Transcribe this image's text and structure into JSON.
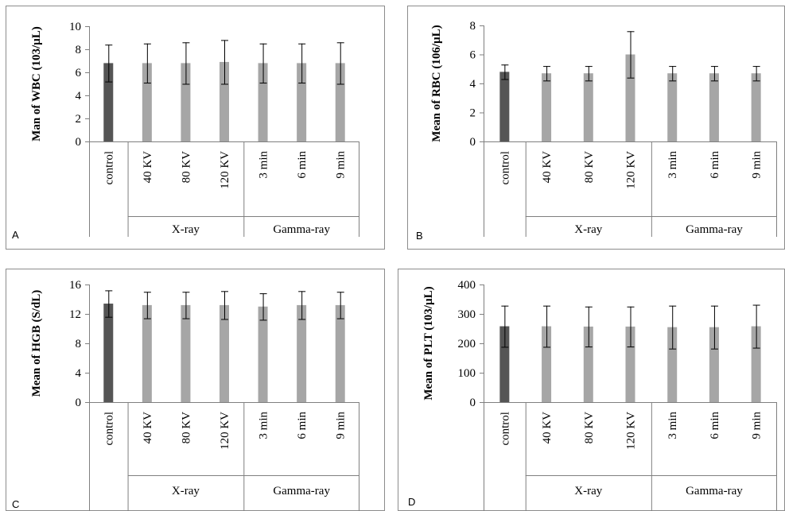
{
  "chart_data": [
    {
      "type": "bar",
      "panel_letter": "A",
      "ylabel": "Man of WBC (103/µL)",
      "ylim": [
        0,
        10
      ],
      "yticks": [
        "0",
        "2",
        "4",
        "6",
        "8",
        "10"
      ],
      "categories": [
        "control",
        "40 KV",
        "80 KV",
        "120 KV",
        "3 min",
        "6 min",
        "9 min"
      ],
      "groups": [
        {
          "label": "",
          "span": [
            0,
            0
          ]
        },
        {
          "label": "X-ray",
          "span": [
            1,
            3
          ]
        },
        {
          "label": "Gamma-ray",
          "span": [
            4,
            6
          ]
        }
      ],
      "values": [
        6.8,
        6.8,
        6.8,
        6.9,
        6.8,
        6.8,
        6.8
      ],
      "errors": [
        1.6,
        1.7,
        1.8,
        1.9,
        1.7,
        1.7,
        1.8
      ]
    },
    {
      "type": "bar",
      "panel_letter": "B",
      "ylabel": "Mean of RBC (106/µL)",
      "ylim": [
        0,
        8
      ],
      "yticks": [
        "0",
        "2",
        "4",
        "6",
        "8"
      ],
      "categories": [
        "control",
        "40 KV",
        "80 KV",
        "120 KV",
        "3 min",
        "6 min",
        "9 min"
      ],
      "groups": [
        {
          "label": "",
          "span": [
            0,
            0
          ]
        },
        {
          "label": "X-ray",
          "span": [
            1,
            3
          ]
        },
        {
          "label": "Gamma-ray",
          "span": [
            4,
            6
          ]
        }
      ],
      "values": [
        4.8,
        4.7,
        4.7,
        6.0,
        4.7,
        4.7,
        4.7
      ],
      "errors": [
        0.5,
        0.5,
        0.5,
        1.6,
        0.5,
        0.5,
        0.5
      ]
    },
    {
      "type": "bar",
      "panel_letter": "C",
      "ylabel": "Mean of HGB (S/dL)",
      "ylim": [
        0,
        16
      ],
      "yticks": [
        "0",
        "4",
        "8",
        "12",
        "16"
      ],
      "categories": [
        "control",
        "40 KV",
        "80 KV",
        "120 KV",
        "3 min",
        "6 min",
        "9 min"
      ],
      "groups": [
        {
          "label": "",
          "span": [
            0,
            0
          ]
        },
        {
          "label": "X-ray",
          "span": [
            1,
            3
          ]
        },
        {
          "label": "Gamma-ray",
          "span": [
            4,
            6
          ]
        }
      ],
      "values": [
        13.4,
        13.2,
        13.2,
        13.2,
        13.0,
        13.2,
        13.2
      ],
      "errors": [
        1.8,
        1.8,
        1.8,
        1.9,
        1.8,
        1.9,
        1.8
      ]
    },
    {
      "type": "bar",
      "panel_letter": "D",
      "ylabel": "Mean of PLT (103/µL)",
      "ylim": [
        0,
        400
      ],
      "yticks": [
        "0",
        "100",
        "200",
        "300",
        "400"
      ],
      "categories": [
        "control",
        "40 KV",
        "80 KV",
        "120 KV",
        "3 min",
        "6 min",
        "9 min"
      ],
      "groups": [
        {
          "label": "",
          "span": [
            0,
            0
          ]
        },
        {
          "label": "X-ray",
          "span": [
            1,
            3
          ]
        },
        {
          "label": "Gamma-ray",
          "span": [
            4,
            6
          ]
        }
      ],
      "values": [
        258,
        258,
        257,
        257,
        255,
        255,
        258
      ],
      "errors": [
        70,
        70,
        68,
        68,
        73,
        73,
        73
      ]
    }
  ],
  "colors": {
    "control_bar": "#555555",
    "treatment_bar": "#a6a6a6",
    "frame": "#8c8c8c",
    "axis": "#7f7f7f",
    "text": "#000000"
  }
}
